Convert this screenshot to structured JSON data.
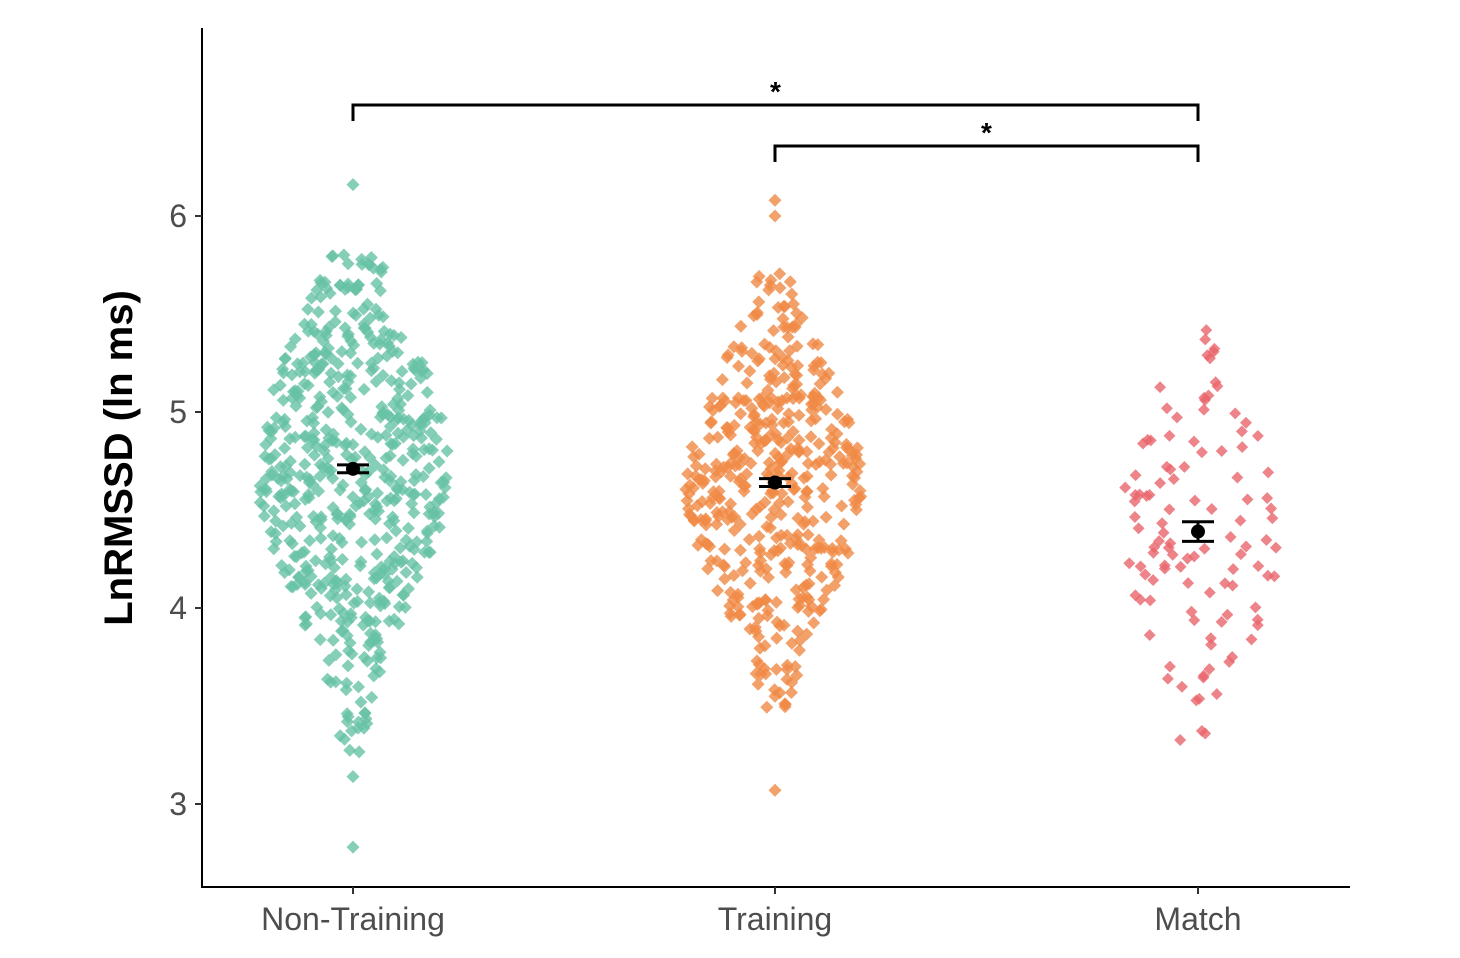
{
  "chart_data": {
    "type": "scatter",
    "subtype": "beeswarm-with-mean-se",
    "title": "",
    "xlabel": "",
    "ylabel": "LnRMSSD (ln ms)",
    "categories": [
      "Non-Training",
      "Training",
      "Match"
    ],
    "ylim": [
      2.58,
      6.98
    ],
    "yticks": [
      "3",
      "4",
      "5",
      "6"
    ],
    "grid": false,
    "legend": "none",
    "series": [
      {
        "category": "Non-Training",
        "color": "#66c2a5",
        "n": 560,
        "mean": 4.71,
        "se": 0.02,
        "min": 2.78,
        "max": 6.16,
        "outliers": [
          2.78,
          3.14,
          6.16
        ]
      },
      {
        "category": "Training",
        "color": "#f08a45",
        "n": 450,
        "mean": 4.64,
        "se": 0.02,
        "min": 3.07,
        "max": 6.08,
        "outliers": [
          3.07,
          3.55,
          6.0,
          6.08
        ]
      },
      {
        "category": "Match",
        "color": "#e8656b",
        "n": 110,
        "mean": 4.39,
        "se": 0.05,
        "min": 3.18,
        "max": 5.55,
        "outliers": []
      }
    ],
    "significance": [
      {
        "from": "Non-Training",
        "to": "Match",
        "label": "*"
      },
      {
        "from": "Training",
        "to": "Match",
        "label": "*"
      }
    ]
  }
}
